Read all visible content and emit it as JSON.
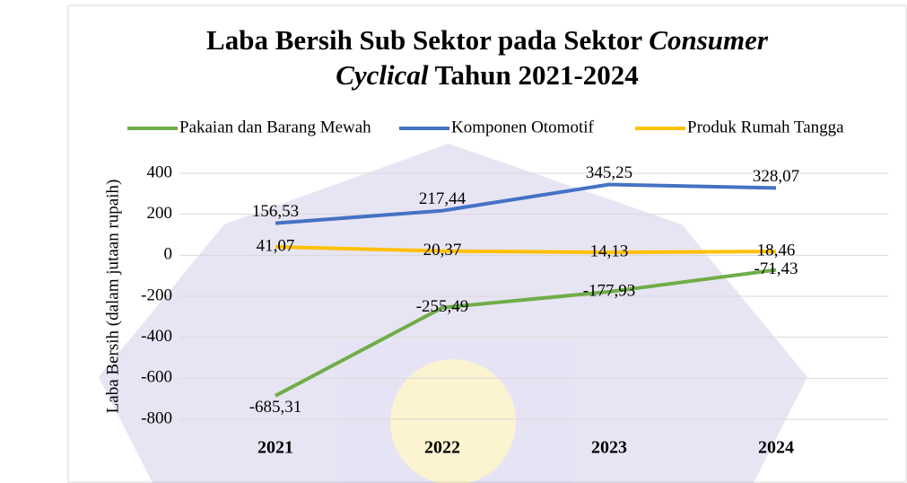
{
  "chart_data": {
    "type": "line",
    "title": [
      [
        {
          "text": "Laba Bersih Sub Sektor pada Sektor "
        },
        {
          "text": "Consumer",
          "italic": true
        }
      ],
      [
        {
          "text": "Cyclical",
          "italic": true
        },
        {
          "text": " Tahun 2021-2024"
        }
      ]
    ],
    "y_label": "Laba Bersih (dalam jutaan rupaih)",
    "categories": [
      "2021",
      "2022",
      "2023",
      "2024"
    ],
    "series": [
      {
        "name": "Pakaian dan Barang Mewah",
        "color": "#70ad47",
        "values": [
          -685.31,
          -255.49,
          -177.93,
          -71.43
        ],
        "value_labels": [
          "-685,31",
          "-255,49",
          "-177,93",
          "-71,43"
        ]
      },
      {
        "name": "Komponen Otomotif",
        "color": "#4472c4",
        "values": [
          156.53,
          217.44,
          345.25,
          328.07
        ],
        "value_labels": [
          "156,53",
          "217,44",
          "345,25",
          "328,07"
        ]
      },
      {
        "name": "Produk Rumah Tangga",
        "color": "#ffc000",
        "values": [
          41.07,
          20.37,
          14.13,
          18.46
        ],
        "value_labels": [
          "41,07",
          "20,37",
          "14,13",
          "18,46"
        ]
      }
    ],
    "ylim": [
      -800,
      400
    ],
    "yticks": [
      -800,
      -600,
      -400,
      -200,
      0,
      200,
      400
    ],
    "grid": true
  }
}
